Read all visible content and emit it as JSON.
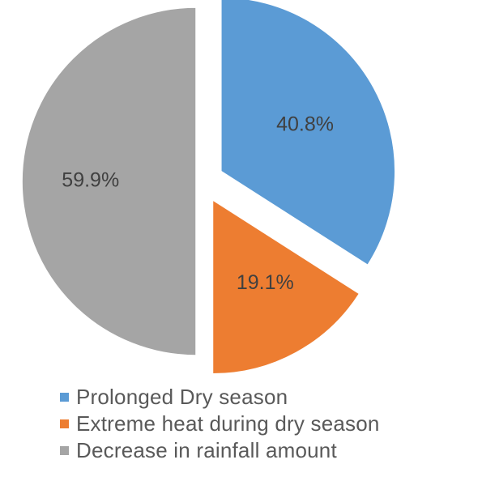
{
  "chart_data": {
    "type": "pie",
    "title": "",
    "slices": [
      {
        "label": "Prolonged Dry season",
        "value": 40.8,
        "display": "40.8%",
        "color": "#5b9bd5"
      },
      {
        "label": "Extreme heat during dry season",
        "value": 19.1,
        "display": "19.1%",
        "color": "#ed7d31"
      },
      {
        "label": "Decrease in rainfall amount",
        "value": 59.9,
        "display": "59.9%",
        "color": "#a5a5a5"
      }
    ],
    "exploded": true,
    "legend_placement": "bottom"
  }
}
